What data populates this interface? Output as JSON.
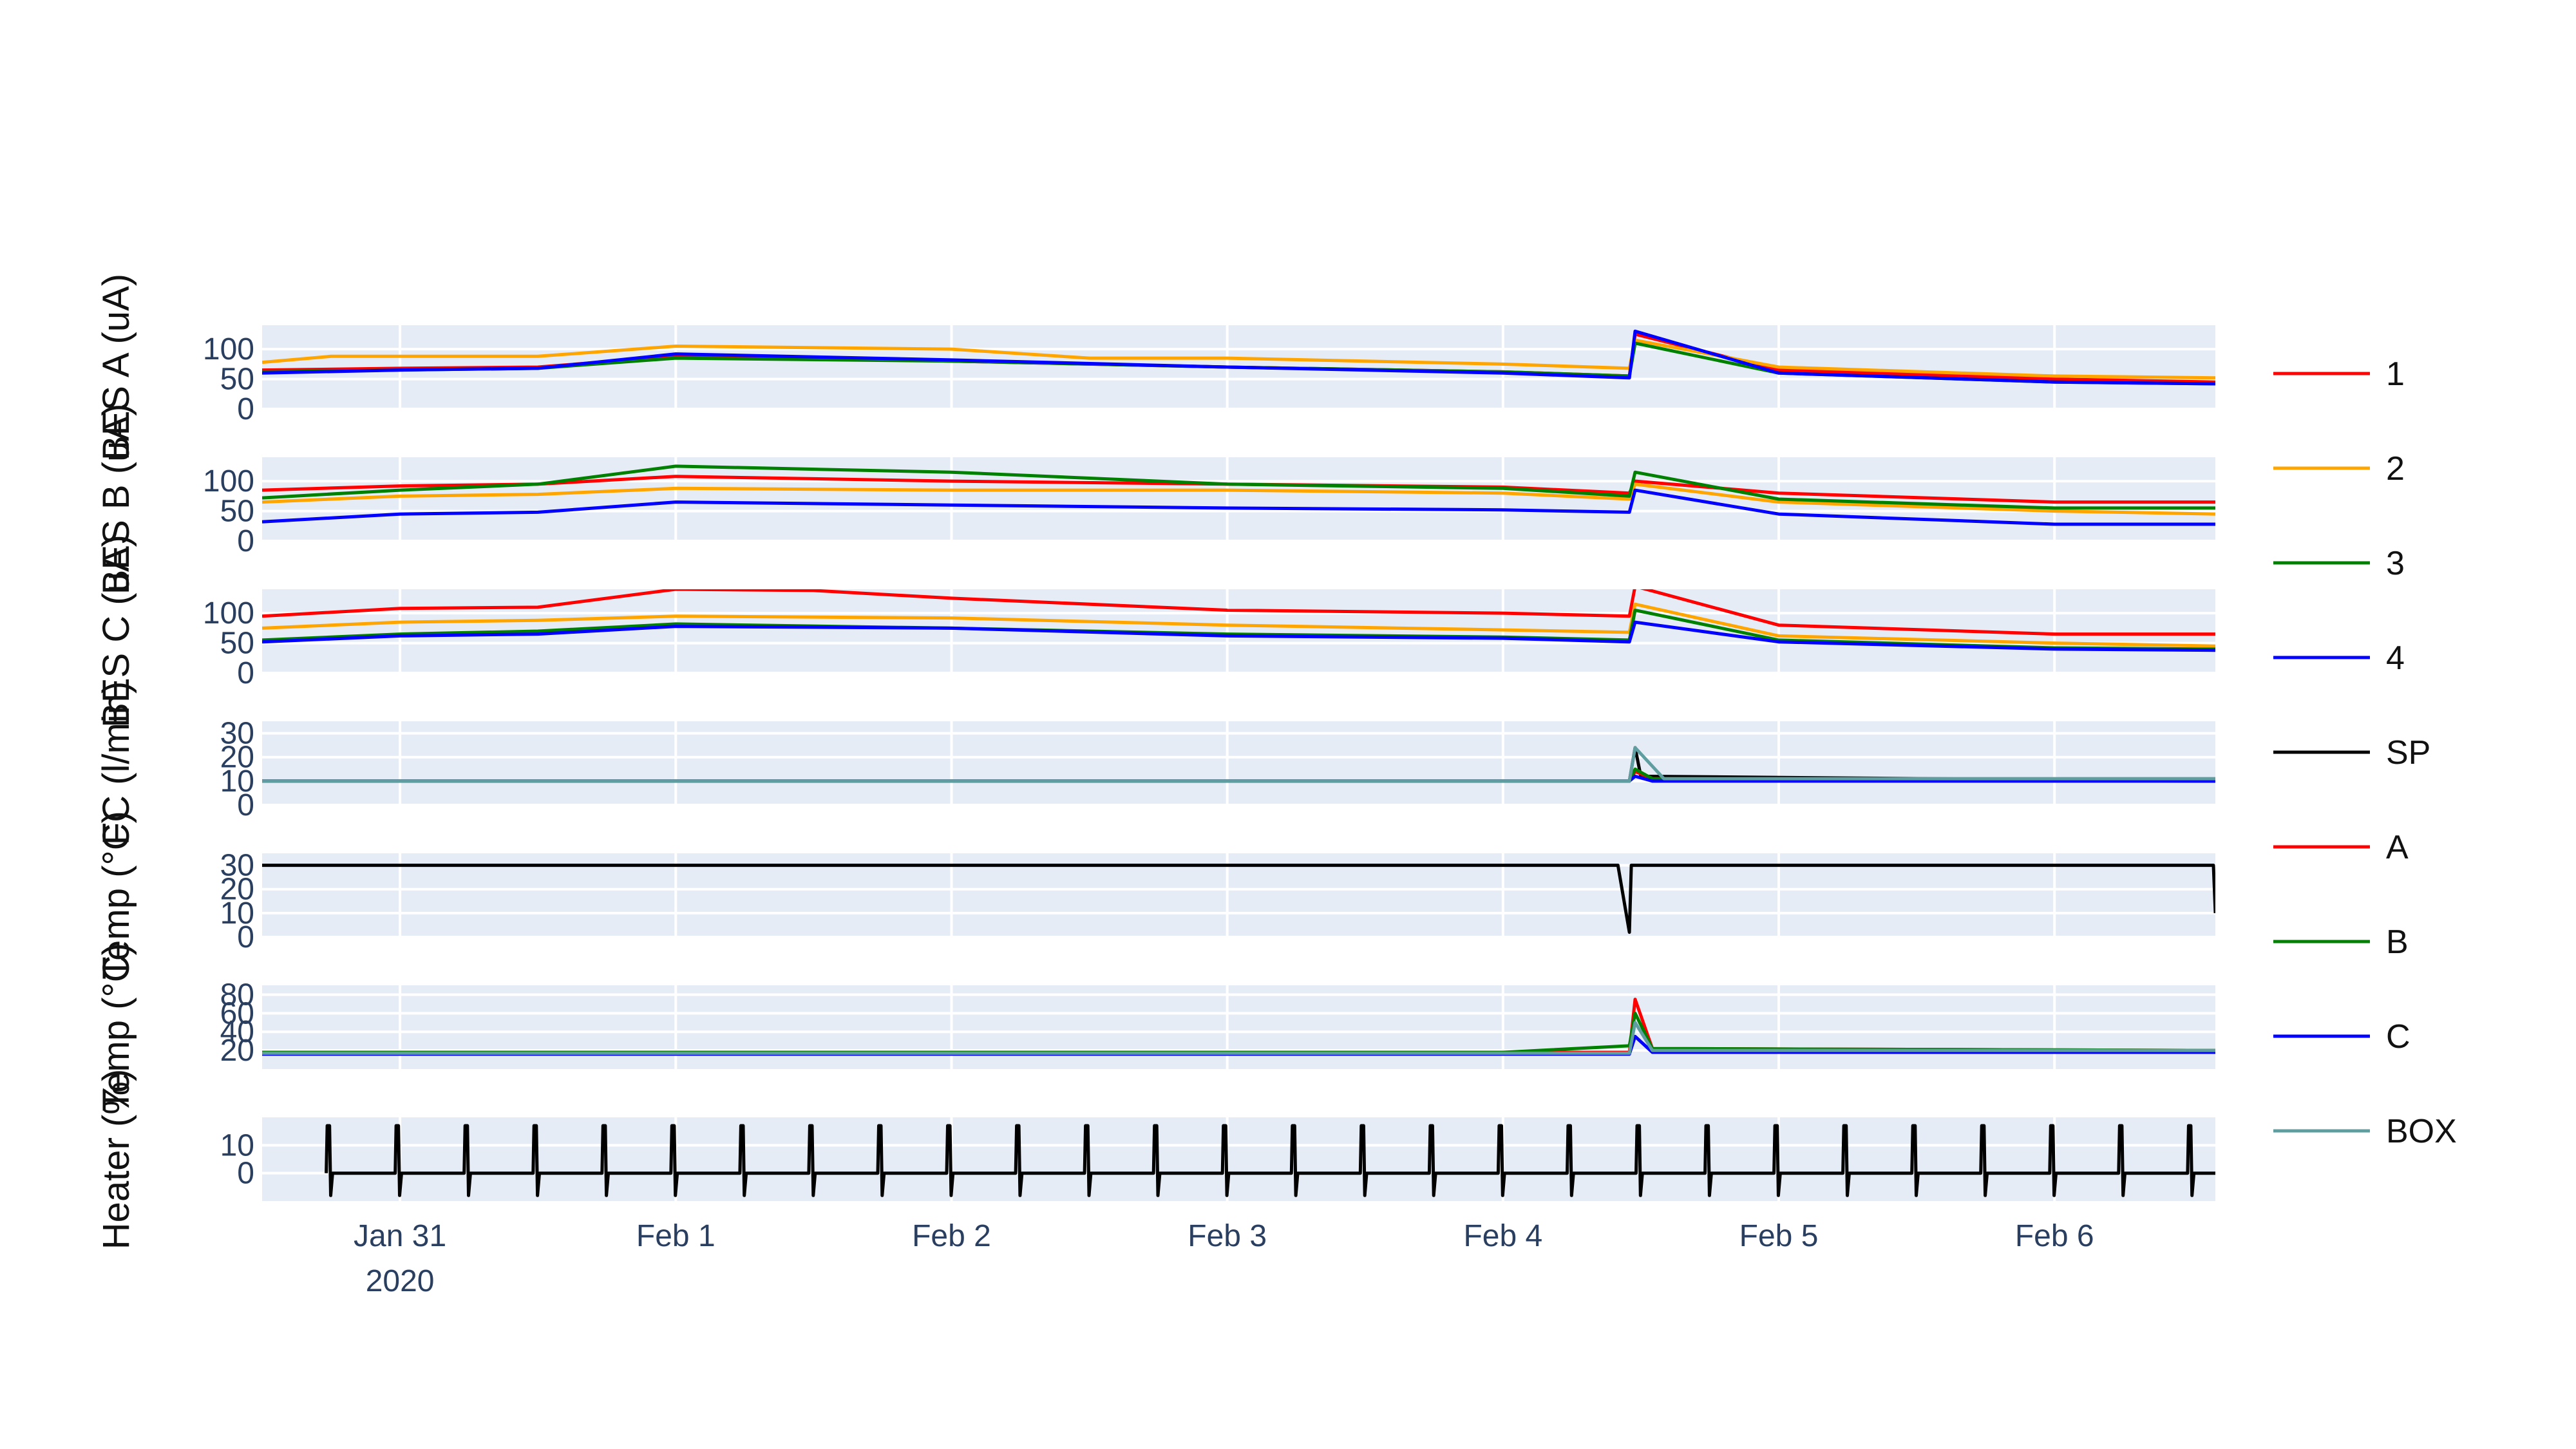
{
  "chart_data": {
    "type": "line",
    "x_axis": {
      "ticks": [
        "Jan 31",
        "Feb 1",
        "Feb 2",
        "Feb 3",
        "Feb 4",
        "Feb 5",
        "Feb 6"
      ],
      "year_label": "2020",
      "range": [
        "2020-01-30 12:00",
        "2020-02-06 14:00"
      ]
    },
    "legend": {
      "placement": "right",
      "entries": [
        {
          "name": "1",
          "color": "#ff0000"
        },
        {
          "name": "2",
          "color": "#ffa500"
        },
        {
          "name": "3",
          "color": "#008000"
        },
        {
          "name": "4",
          "color": "#0000ff"
        },
        {
          "name": "SP",
          "color": "#000000"
        },
        {
          "name": "A",
          "color": "#ff0000"
        },
        {
          "name": "B",
          "color": "#008000"
        },
        {
          "name": "C",
          "color": "#0000ff"
        },
        {
          "name": "BOX",
          "color": "#5f9ea0"
        }
      ]
    },
    "panels": [
      {
        "ylabel": "BES A (uA)",
        "ylim": [
          0,
          140
        ],
        "yticks": [
          "0",
          "50",
          "100"
        ],
        "series": [
          {
            "name": "1",
            "color": "#ff0000",
            "x": [
              "2020-01-30 12:00",
              "2020-01-31 00:00",
              "2020-01-31 12:00",
              "2020-02-01 00:00",
              "2020-02-02 00:00",
              "2020-02-03 00:00",
              "2020-02-04 00:00",
              "2020-02-04 11:00",
              "2020-02-04 11:30",
              "2020-02-05 00:00",
              "2020-02-06 00:00",
              "2020-02-06 14:00"
            ],
            "y": [
              65,
              68,
              70,
              88,
              80,
              70,
              62,
              55,
              125,
              65,
              50,
              45
            ]
          },
          {
            "name": "2",
            "color": "#ffa500",
            "x": [
              "2020-01-30 12:00",
              "2020-01-30 18:00",
              "2020-01-31 12:00",
              "2020-02-01 00:00",
              "2020-02-02 00:00",
              "2020-02-02 12:00",
              "2020-02-03 00:00",
              "2020-02-04 00:00",
              "2020-02-04 11:00",
              "2020-02-04 11:30",
              "2020-02-05 00:00",
              "2020-02-06 00:00",
              "2020-02-06 14:00"
            ],
            "y": [
              78,
              88,
              88,
              105,
              100,
              85,
              85,
              75,
              68,
              115,
              70,
              55,
              52
            ]
          },
          {
            "name": "3",
            "color": "#008000",
            "x": [
              "2020-01-30 12:00",
              "2020-01-31 00:00",
              "2020-01-31 12:00",
              "2020-02-01 00:00",
              "2020-02-02 00:00",
              "2020-02-03 00:00",
              "2020-02-04 00:00",
              "2020-02-04 11:00",
              "2020-02-04 11:30",
              "2020-02-05 00:00",
              "2020-02-06 00:00",
              "2020-02-06 14:00"
            ],
            "y": [
              62,
              65,
              68,
              85,
              80,
              70,
              62,
              55,
              110,
              60,
              45,
              42
            ]
          },
          {
            "name": "4",
            "color": "#0000ff",
            "x": [
              "2020-01-30 12:00",
              "2020-01-31 00:00",
              "2020-01-31 12:00",
              "2020-02-01 00:00",
              "2020-02-02 00:00",
              "2020-02-03 00:00",
              "2020-02-04 00:00",
              "2020-02-04 11:00",
              "2020-02-04 11:30",
              "2020-02-05 00:00",
              "2020-02-06 00:00",
              "2020-02-06 14:00"
            ],
            "y": [
              60,
              65,
              68,
              92,
              82,
              70,
              60,
              52,
              130,
              60,
              45,
              42
            ]
          }
        ]
      },
      {
        "ylabel": "BES B (uA)",
        "ylim": [
          0,
          140
        ],
        "yticks": [
          "0",
          "50",
          "100"
        ],
        "series": [
          {
            "name": "1",
            "color": "#ff0000",
            "x": [
              "2020-01-30 12:00",
              "2020-01-31 00:00",
              "2020-01-31 12:00",
              "2020-02-01 00:00",
              "2020-02-02 00:00",
              "2020-02-03 00:00",
              "2020-02-04 00:00",
              "2020-02-04 11:00",
              "2020-02-04 11:30",
              "2020-02-05 00:00",
              "2020-02-06 00:00",
              "2020-02-06 14:00"
            ],
            "y": [
              85,
              92,
              95,
              108,
              100,
              95,
              90,
              80,
              100,
              80,
              65,
              65
            ]
          },
          {
            "name": "2",
            "color": "#ffa500",
            "x": [
              "2020-01-30 12:00",
              "2020-01-31 00:00",
              "2020-01-31 12:00",
              "2020-02-01 00:00",
              "2020-02-02 00:00",
              "2020-02-03 00:00",
              "2020-02-04 00:00",
              "2020-02-04 11:00",
              "2020-02-04 11:30",
              "2020-02-05 00:00",
              "2020-02-06 00:00",
              "2020-02-06 14:00"
            ],
            "y": [
              65,
              75,
              78,
              88,
              85,
              85,
              80,
              70,
              95,
              65,
              50,
              45
            ]
          },
          {
            "name": "3",
            "color": "#008000",
            "x": [
              "2020-01-30 12:00",
              "2020-01-31 00:00",
              "2020-01-31 12:00",
              "2020-02-01 00:00",
              "2020-02-02 00:00",
              "2020-02-03 00:00",
              "2020-02-04 00:00",
              "2020-02-04 11:00",
              "2020-02-04 11:30",
              "2020-02-05 00:00",
              "2020-02-06 00:00",
              "2020-02-06 14:00"
            ],
            "y": [
              72,
              85,
              95,
              125,
              115,
              95,
              88,
              75,
              115,
              70,
              55,
              55
            ]
          },
          {
            "name": "4",
            "color": "#0000ff",
            "x": [
              "2020-01-30 12:00",
              "2020-01-31 00:00",
              "2020-01-31 12:00",
              "2020-02-01 00:00",
              "2020-02-02 00:00",
              "2020-02-03 00:00",
              "2020-02-04 00:00",
              "2020-02-04 11:00",
              "2020-02-04 11:30",
              "2020-02-05 00:00",
              "2020-02-06 00:00",
              "2020-02-06 14:00"
            ],
            "y": [
              32,
              45,
              48,
              65,
              60,
              55,
              52,
              48,
              85,
              45,
              28,
              28
            ]
          }
        ]
      },
      {
        "ylabel": "BES C (uA)",
        "ylim": [
          0,
          140
        ],
        "yticks": [
          "0",
          "50",
          "100"
        ],
        "series": [
          {
            "name": "1",
            "color": "#ff0000",
            "x": [
              "2020-01-30 12:00",
              "2020-01-31 00:00",
              "2020-01-31 12:00",
              "2020-02-01 00:00",
              "2020-02-01 12:00",
              "2020-02-02 00:00",
              "2020-02-03 00:00",
              "2020-02-04 00:00",
              "2020-02-04 11:00",
              "2020-02-04 11:30",
              "2020-02-05 00:00",
              "2020-02-06 00:00",
              "2020-02-06 14:00"
            ],
            "y": [
              95,
              108,
              110,
              140,
              138,
              125,
              105,
              100,
              95,
              145,
              80,
              65,
              65
            ]
          },
          {
            "name": "2",
            "color": "#ffa500",
            "x": [
              "2020-01-30 12:00",
              "2020-01-31 00:00",
              "2020-01-31 12:00",
              "2020-02-01 00:00",
              "2020-02-02 00:00",
              "2020-02-03 00:00",
              "2020-02-04 00:00",
              "2020-02-04 11:00",
              "2020-02-04 11:30",
              "2020-02-05 00:00",
              "2020-02-06 00:00",
              "2020-02-06 14:00"
            ],
            "y": [
              75,
              85,
              88,
              95,
              92,
              80,
              72,
              68,
              115,
              62,
              50,
              45
            ]
          },
          {
            "name": "3",
            "color": "#008000",
            "x": [
              "2020-01-30 12:00",
              "2020-01-31 00:00",
              "2020-01-31 12:00",
              "2020-02-01 00:00",
              "2020-02-02 00:00",
              "2020-02-03 00:00",
              "2020-02-04 00:00",
              "2020-02-04 11:00",
              "2020-02-04 11:30",
              "2020-02-05 00:00",
              "2020-02-06 00:00",
              "2020-02-06 14:00"
            ],
            "y": [
              55,
              65,
              70,
              82,
              75,
              65,
              60,
              55,
              105,
              55,
              42,
              40
            ]
          },
          {
            "name": "4",
            "color": "#0000ff",
            "x": [
              "2020-01-30 12:00",
              "2020-01-31 00:00",
              "2020-01-31 12:00",
              "2020-02-01 00:00",
              "2020-02-02 00:00",
              "2020-02-03 00:00",
              "2020-02-04 00:00",
              "2020-02-04 11:00",
              "2020-02-04 11:30",
              "2020-02-05 00:00",
              "2020-02-06 00:00",
              "2020-02-06 14:00"
            ],
            "y": [
              52,
              62,
              65,
              78,
              75,
              62,
              58,
              52,
              85,
              52,
              40,
              38
            ]
          }
        ]
      },
      {
        "ylabel": "FC (l/min)",
        "ylim": [
          0,
          35
        ],
        "yticks": [
          "0",
          "10",
          "20",
          "30"
        ],
        "series": [
          {
            "name": "SP",
            "color": "#000000",
            "x": [
              "2020-01-30 12:00",
              "2020-02-04 10:00",
              "2020-02-04 11:00",
              "2020-02-04 11:30",
              "2020-02-04 12:00",
              "2020-02-06 14:00"
            ],
            "y": [
              10,
              10,
              10,
              24,
              12,
              10
            ]
          },
          {
            "name": "A",
            "color": "#ff0000",
            "x": [
              "2020-01-30 12:00",
              "2020-02-04 11:00",
              "2020-02-04 11:30",
              "2020-02-04 13:00",
              "2020-02-06 14:00"
            ],
            "y": [
              10,
              10,
              14,
              11,
              10
            ]
          },
          {
            "name": "B",
            "color": "#008000",
            "x": [
              "2020-01-30 12:00",
              "2020-02-04 11:00",
              "2020-02-04 11:30",
              "2020-02-04 13:00",
              "2020-02-06 14:00"
            ],
            "y": [
              10,
              10,
              15,
              11,
              10
            ]
          },
          {
            "name": "C",
            "color": "#0000ff",
            "x": [
              "2020-01-30 12:00",
              "2020-02-04 11:00",
              "2020-02-04 11:30",
              "2020-02-04 13:00",
              "2020-02-06 14:00"
            ],
            "y": [
              10,
              10,
              12,
              10,
              10
            ]
          },
          {
            "name": "BOX",
            "color": "#5f9ea0",
            "x": [
              "2020-01-30 12:00",
              "2020-02-04 11:00",
              "2020-02-04 11:30",
              "2020-02-04 14:00",
              "2020-02-06 14:00"
            ],
            "y": [
              10,
              10,
              24,
              11,
              11
            ]
          }
        ]
      },
      {
        "ylabel": "Temp (°C)",
        "ylim": [
          0,
          35
        ],
        "yticks": [
          "0",
          "10",
          "20",
          "30"
        ],
        "series": [
          {
            "name": "SP",
            "color": "#000000",
            "x": [
              "2020-01-30 12:00",
              "2020-02-04 10:00",
              "2020-02-04 11:00",
              "2020-02-04 11:10",
              "2020-02-06 13:50",
              "2020-02-06 14:00"
            ],
            "y": [
              30,
              30,
              2,
              30,
              30,
              10
            ]
          }
        ]
      },
      {
        "ylabel": "Temp (°C)",
        "ylim": [
          0,
          90
        ],
        "yticks": [
          "20",
          "40",
          "60",
          "80"
        ],
        "series": [
          {
            "name": "A",
            "color": "#ff0000",
            "x": [
              "2020-01-30 12:00",
              "2020-02-04 11:00",
              "2020-02-04 11:30",
              "2020-02-04 13:00",
              "2020-02-06 14:00"
            ],
            "y": [
              18,
              18,
              75,
              22,
              20
            ]
          },
          {
            "name": "B",
            "color": "#008000",
            "x": [
              "2020-01-30 12:00",
              "2020-02-04 00:00",
              "2020-02-04 11:00",
              "2020-02-04 11:30",
              "2020-02-04 13:00",
              "2020-02-06 14:00"
            ],
            "y": [
              18,
              18,
              25,
              60,
              22,
              20
            ]
          },
          {
            "name": "C",
            "color": "#0000ff",
            "x": [
              "2020-01-30 12:00",
              "2020-02-04 11:00",
              "2020-02-04 11:30",
              "2020-02-04 13:00",
              "2020-02-06 14:00"
            ],
            "y": [
              16,
              16,
              35,
              18,
              18
            ]
          },
          {
            "name": "BOX",
            "color": "#5f9ea0",
            "x": [
              "2020-01-30 12:00",
              "2020-02-04 11:00",
              "2020-02-04 11:30",
              "2020-02-04 13:00",
              "2020-02-06 14:00"
            ],
            "y": [
              17,
              17,
              50,
              20,
              20
            ]
          }
        ]
      },
      {
        "ylabel": "Heater (%)",
        "ylim": [
          -10,
          20
        ],
        "yticks": [
          "0",
          "10"
        ],
        "series": [
          {
            "name": "Heater",
            "color": "#000000",
            "x": [],
            "y": []
          }
        ]
      }
    ]
  }
}
